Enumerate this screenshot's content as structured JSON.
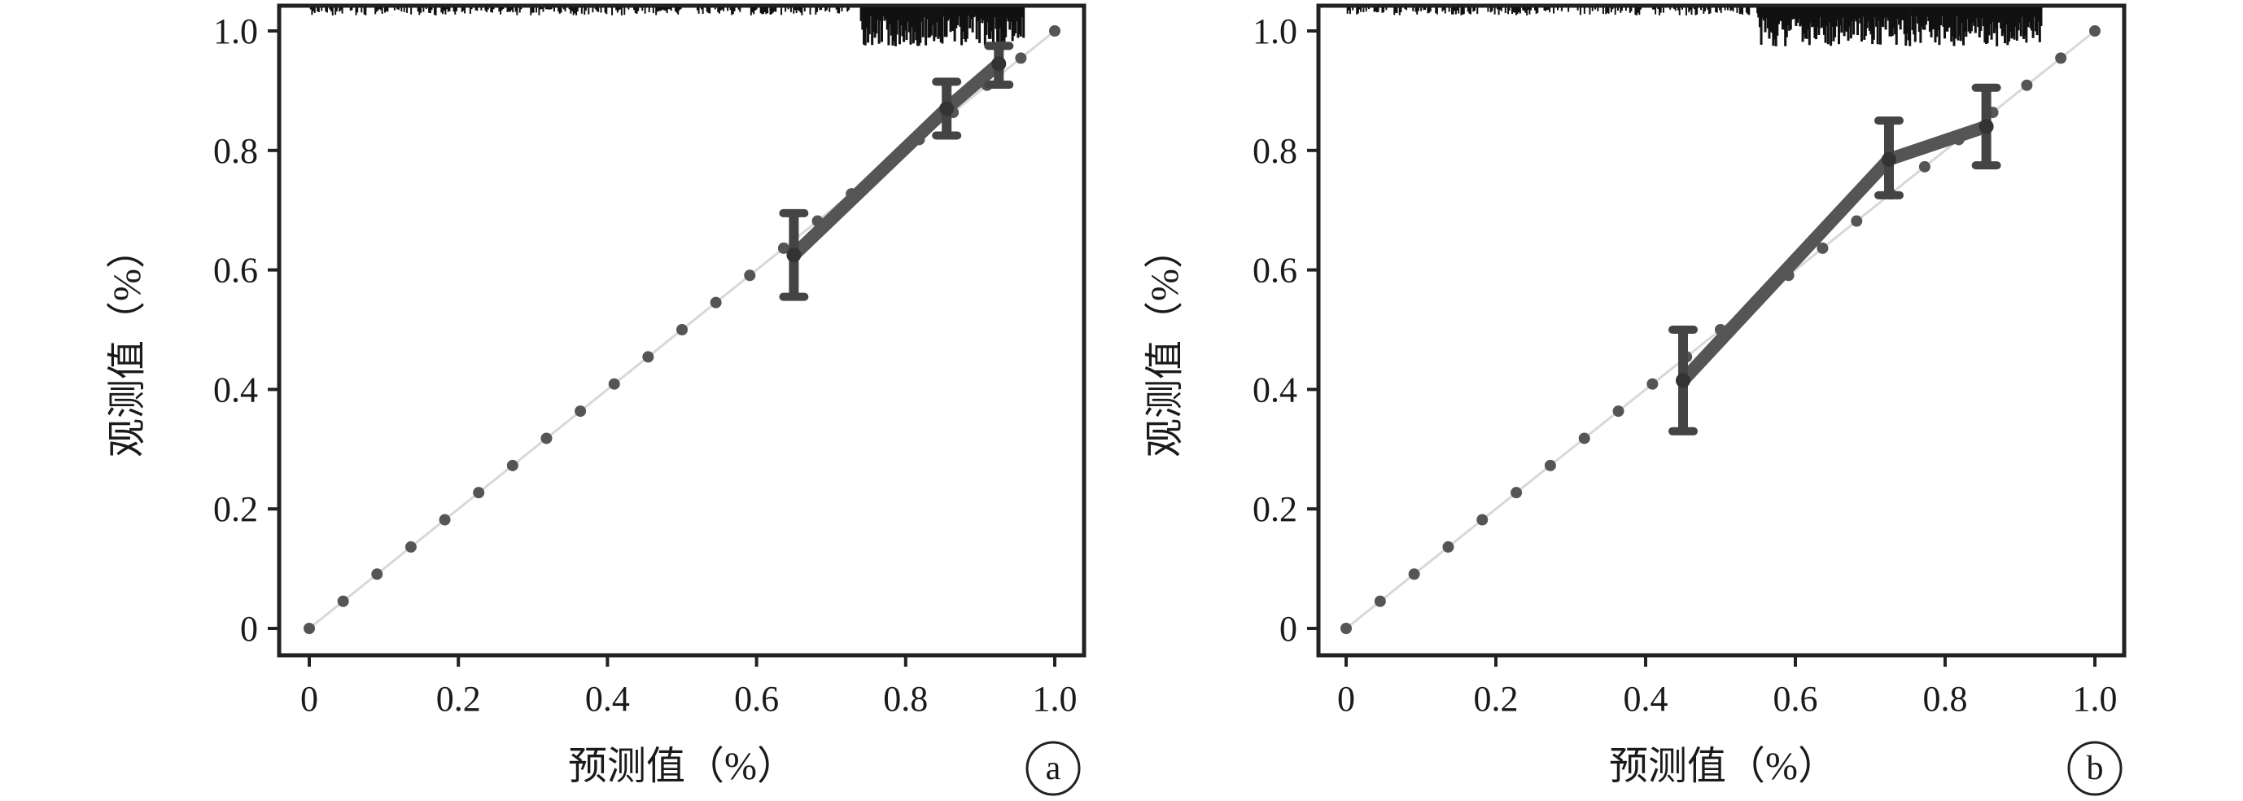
{
  "chart_data": [
    {
      "type": "line",
      "panel_label": "a",
      "xlabel": "预测值（%）",
      "ylabel": "观测值（%）",
      "xlim": [
        0,
        1.0
      ],
      "ylim": [
        0,
        1.0
      ],
      "x_ticks": [
        "0",
        "0.2",
        "0.4",
        "0.6",
        "0.8",
        "1.0"
      ],
      "y_ticks": [
        "0",
        "0.2",
        "0.4",
        "0.6",
        "0.8",
        "1.0"
      ],
      "grid": false,
      "reference_line": {
        "x": [
          0,
          1.0
        ],
        "y": [
          0,
          1.0
        ],
        "style": "dotted"
      },
      "series": [
        {
          "x": [
            0.65,
            0.855,
            0.925
          ],
          "y": [
            0.625,
            0.87,
            0.945
          ],
          "y_lower": [
            0.555,
            0.825,
            0.91
          ],
          "y_upper": [
            0.695,
            0.915,
            0.975
          ]
        }
      ],
      "rug": {
        "side": "top",
        "x_from": 0.0,
        "x_to": 0.96,
        "dense_from": 0.74
      }
    },
    {
      "type": "line",
      "panel_label": "b",
      "xlabel": "预测值（%）",
      "ylabel": "观测值（%）",
      "xlim": [
        0,
        1.0
      ],
      "ylim": [
        0,
        1.0
      ],
      "x_ticks": [
        "0",
        "0.2",
        "0.4",
        "0.6",
        "0.8",
        "1.0"
      ],
      "y_ticks": [
        "0",
        "0.2",
        "0.4",
        "0.6",
        "0.8",
        "1.0"
      ],
      "grid": false,
      "reference_line": {
        "x": [
          0,
          1.0
        ],
        "y": [
          0,
          1.0
        ],
        "style": "dotted"
      },
      "series": [
        {
          "x": [
            0.45,
            0.725,
            0.855
          ],
          "y": [
            0.415,
            0.785,
            0.84
          ],
          "y_lower": [
            0.33,
            0.725,
            0.775
          ],
          "y_upper": [
            0.5,
            0.85,
            0.905
          ]
        }
      ],
      "rug": {
        "side": "top",
        "x_from": 0.0,
        "x_to": 0.93,
        "dense_from": 0.55
      }
    }
  ]
}
